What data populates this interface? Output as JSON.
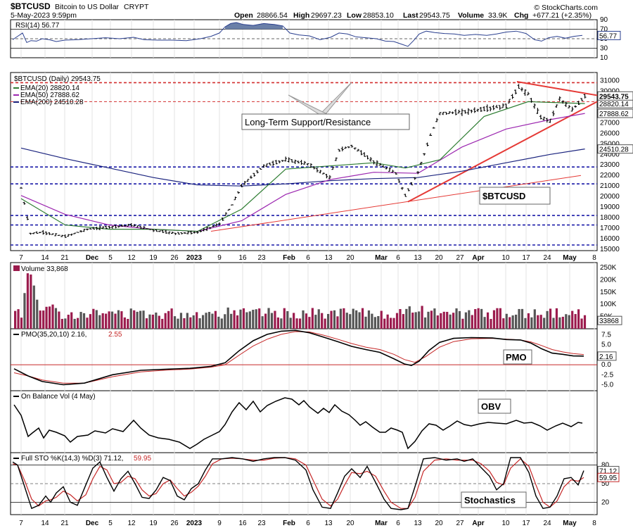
{
  "header": {
    "symbol": "$BTCUSD",
    "name": "Bitcoin to US Dollar",
    "exchange": "CRYPT",
    "datetime": "5-May-2023 9:59pm",
    "open_label": "Open",
    "open": "28866.54",
    "high_label": "High",
    "high": "29697.23",
    "low_label": "Low",
    "low": "28853.10",
    "last_label": "Last",
    "last": "29543.75",
    "volume_label": "Volume",
    "volume": "33.9K",
    "chg_label": "Chg",
    "chg": "+677.21 (+2.35%)",
    "brand": "© StockCharts.com"
  },
  "x_axis_labels": [
    "7",
    "14",
    "21",
    "Dec",
    "5",
    "12",
    "19",
    "26",
    "2023",
    "9",
    "16",
    "23",
    "Feb",
    "6",
    "13",
    "20",
    "Mar",
    "6",
    "13",
    "20",
    "27",
    "Apr",
    "10",
    "17",
    "24",
    "May",
    "8"
  ],
  "colors": {
    "price": "#000000",
    "ema20": "#2e7d32",
    "ema50": "#9c27b0",
    "ema200": "#1a237e",
    "support": "#1a1aa8",
    "resistance": "#d32f2f",
    "trend": "#e53935",
    "rsi_fill": "#6a7fa8",
    "vol_up": "#9b1b4d",
    "vol_down": "#555555"
  },
  "rsi": {
    "legend": "RSI(14) 56.77",
    "ticks": [
      "90",
      "70",
      "50",
      "30",
      "10"
    ],
    "last_tag": "56.77"
  },
  "price_panel": {
    "legend_main": "$BTCUSD (Daily) 29543.75",
    "legend_ema20": "EMA(20) 28820.14",
    "legend_ema50": "EMA(50) 27888.62",
    "legend_ema200": "EMA(200) 24510.28",
    "ticks": [
      "31000",
      "30000",
      "29000",
      "28000",
      "27000",
      "26000",
      "25000",
      "24000",
      "23000",
      "22000",
      "21000",
      "20000",
      "19000",
      "18000",
      "17000",
      "16000",
      "15000"
    ],
    "tag_last": "29543.75",
    "tag_ema20": "28820.14",
    "tag_ema50": "27888.62",
    "tag_ema200": "24510.28",
    "annotation_sr": "Long-Term Support/Resistance",
    "annotation_symbol": "$BTCUSD"
  },
  "volume_panel": {
    "legend": "Volume 33,868",
    "ticks": [
      "250K",
      "200K",
      "150K",
      "100K",
      "50K"
    ],
    "last_tag": "33868"
  },
  "pmo_panel": {
    "legend_a": "PMO(35,20,10) 2.16,",
    "legend_b": "2.55",
    "ticks": [
      "7.5",
      "5.0",
      "2.5",
      "0.0",
      "-2.5",
      "-5.0"
    ],
    "last_tag": "2.16",
    "annotation": "PMO"
  },
  "obv_panel": {
    "legend": "On Balance Vol (4 May)",
    "annotation": "OBV"
  },
  "sto_panel": {
    "legend_a": "Full STO %K(14,3) %D(3) 71.12,",
    "legend_b": "59.95",
    "ticks": [
      "80",
      "50",
      "20"
    ],
    "tag_k": "71.12",
    "tag_d": "59.95",
    "annotation": "Stochastics"
  },
  "chart_data": {
    "type": "line",
    "title": "$BTCUSD (Daily)",
    "x_start": "2022-11-07",
    "x_end": "2023-05-08",
    "ylim": [
      15000,
      31000
    ],
    "series": [
      {
        "name": "$BTCUSD (Daily)",
        "x": [
          "2022-11-07",
          "2022-11-10",
          "2022-11-14",
          "2022-11-21",
          "2022-11-28",
          "2022-12-05",
          "2022-12-12",
          "2022-12-19",
          "2022-12-26",
          "2023-01-02",
          "2023-01-09",
          "2023-01-13",
          "2023-01-16",
          "2023-01-23",
          "2023-01-30",
          "2023-02-06",
          "2023-02-13",
          "2023-02-16",
          "2023-02-20",
          "2023-02-27",
          "2023-03-06",
          "2023-03-09",
          "2023-03-13",
          "2023-03-17",
          "2023-03-20",
          "2023-03-27",
          "2023-04-03",
          "2023-04-10",
          "2023-04-14",
          "2023-04-17",
          "2023-04-21",
          "2023-04-24",
          "2023-04-27",
          "2023-05-01",
          "2023-05-05"
        ],
        "values": [
          20800,
          16500,
          16600,
          16200,
          16900,
          17100,
          17300,
          16800,
          16500,
          16600,
          17400,
          19200,
          21000,
          22900,
          23500,
          23100,
          21800,
          24400,
          24800,
          23300,
          22200,
          20100,
          22300,
          25800,
          27900,
          28000,
          28300,
          28600,
          30400,
          29700,
          27500,
          27200,
          29300,
          28200,
          29544
        ]
      },
      {
        "name": "EMA(20)",
        "x": [
          "2022-11-07",
          "2022-11-21",
          "2022-12-05",
          "2022-12-19",
          "2023-01-02",
          "2023-01-16",
          "2023-01-30",
          "2023-02-13",
          "2023-02-27",
          "2023-03-09",
          "2023-03-20",
          "2023-04-03",
          "2023-04-17",
          "2023-05-05"
        ],
        "values": [
          19800,
          17300,
          16900,
          16900,
          16700,
          18800,
          22600,
          22900,
          23200,
          22700,
          23500,
          27600,
          29000,
          28820
        ]
      },
      {
        "name": "EMA(50)",
        "x": [
          "2022-11-07",
          "2022-11-21",
          "2022-12-05",
          "2022-12-19",
          "2023-01-02",
          "2023-01-16",
          "2023-01-30",
          "2023-02-13",
          "2023-02-27",
          "2023-03-13",
          "2023-03-27",
          "2023-04-10",
          "2023-04-24",
          "2023-05-05"
        ],
        "values": [
          20100,
          18300,
          17300,
          16900,
          16700,
          17700,
          20200,
          21600,
          22300,
          22200,
          24700,
          26400,
          27300,
          27889
        ]
      },
      {
        "name": "EMA(200)",
        "x": [
          "2022-11-07",
          "2022-11-21",
          "2022-12-05",
          "2022-12-19",
          "2023-01-02",
          "2023-01-16",
          "2023-01-30",
          "2023-02-13",
          "2023-02-27",
          "2023-03-13",
          "2023-03-27",
          "2023-04-10",
          "2023-04-24",
          "2023-05-05"
        ],
        "values": [
          24600,
          23600,
          22700,
          21800,
          21100,
          21000,
          21200,
          21500,
          21700,
          21800,
          22400,
          23200,
          24000,
          24510
        ]
      }
    ],
    "horizontal_lines": {
      "support": [
        22800,
        21200,
        18200,
        17300,
        15400
      ],
      "resistance": [
        30800,
        29000
      ]
    },
    "indicators": {
      "rsi_last": 56.77,
      "volume_last": 33868,
      "pmo": [
        2.16,
        2.55
      ],
      "stochastic": {
        "k": 71.12,
        "d": 59.95
      }
    }
  }
}
